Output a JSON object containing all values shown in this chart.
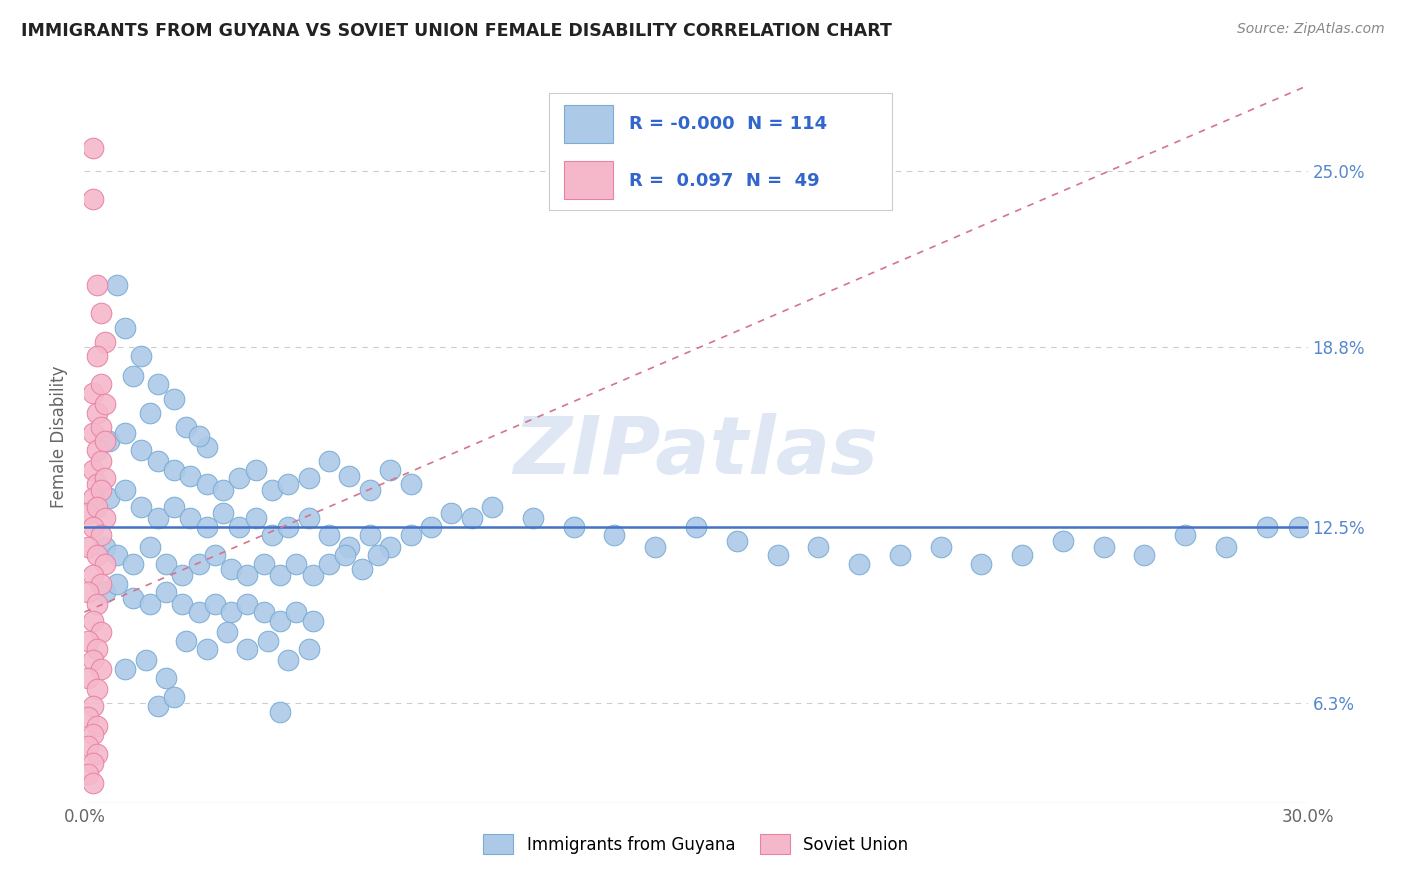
{
  "title": "IMMIGRANTS FROM GUYANA VS SOVIET UNION FEMALE DISABILITY CORRELATION CHART",
  "source": "Source: ZipAtlas.com",
  "ylabel": "Female Disability",
  "xlim": [
    0.0,
    0.3
  ],
  "ylim": [
    0.028,
    0.285
  ],
  "xtick_positions": [
    0.0,
    0.05,
    0.1,
    0.15,
    0.2,
    0.25,
    0.3
  ],
  "xticklabels": [
    "0.0%",
    "",
    "",
    "",
    "",
    "",
    "30.0%"
  ],
  "ytick_positions": [
    0.063,
    0.125,
    0.188,
    0.25
  ],
  "ytick_labels": [
    "6.3%",
    "12.5%",
    "18.8%",
    "25.0%"
  ],
  "legend_blue_r": "-0.000",
  "legend_blue_n": "114",
  "legend_pink_r": "0.097",
  "legend_pink_n": "49",
  "legend_label_blue": "Immigrants from Guyana",
  "legend_label_pink": "Soviet Union",
  "watermark": "ZIPatlas",
  "blue_color": "#adc9e8",
  "blue_edge_color": "#7aadd4",
  "pink_color": "#f5b8cb",
  "pink_edge_color": "#e882a4",
  "blue_line_color": "#4472c4",
  "pink_line_color": "#d4748e",
  "blue_scatter": [
    [
      0.008,
      0.21
    ],
    [
      0.014,
      0.185
    ],
    [
      0.018,
      0.175
    ],
    [
      0.01,
      0.195
    ],
    [
      0.022,
      0.17
    ],
    [
      0.016,
      0.165
    ],
    [
      0.025,
      0.16
    ],
    [
      0.03,
      0.153
    ],
    [
      0.028,
      0.157
    ],
    [
      0.012,
      0.178
    ],
    [
      0.006,
      0.155
    ],
    [
      0.01,
      0.158
    ],
    [
      0.014,
      0.152
    ],
    [
      0.018,
      0.148
    ],
    [
      0.022,
      0.145
    ],
    [
      0.026,
      0.143
    ],
    [
      0.03,
      0.14
    ],
    [
      0.034,
      0.138
    ],
    [
      0.038,
      0.142
    ],
    [
      0.042,
      0.145
    ],
    [
      0.046,
      0.138
    ],
    [
      0.05,
      0.14
    ],
    [
      0.055,
      0.142
    ],
    [
      0.06,
      0.148
    ],
    [
      0.065,
      0.143
    ],
    [
      0.07,
      0.138
    ],
    [
      0.075,
      0.145
    ],
    [
      0.08,
      0.14
    ],
    [
      0.006,
      0.135
    ],
    [
      0.01,
      0.138
    ],
    [
      0.014,
      0.132
    ],
    [
      0.018,
      0.128
    ],
    [
      0.022,
      0.132
    ],
    [
      0.026,
      0.128
    ],
    [
      0.03,
      0.125
    ],
    [
      0.034,
      0.13
    ],
    [
      0.038,
      0.125
    ],
    [
      0.042,
      0.128
    ],
    [
      0.046,
      0.122
    ],
    [
      0.05,
      0.125
    ],
    [
      0.055,
      0.128
    ],
    [
      0.06,
      0.122
    ],
    [
      0.065,
      0.118
    ],
    [
      0.07,
      0.122
    ],
    [
      0.075,
      0.118
    ],
    [
      0.08,
      0.122
    ],
    [
      0.085,
      0.125
    ],
    [
      0.09,
      0.13
    ],
    [
      0.095,
      0.128
    ],
    [
      0.1,
      0.132
    ],
    [
      0.11,
      0.128
    ],
    [
      0.12,
      0.125
    ],
    [
      0.13,
      0.122
    ],
    [
      0.14,
      0.118
    ],
    [
      0.15,
      0.125
    ],
    [
      0.16,
      0.12
    ],
    [
      0.17,
      0.115
    ],
    [
      0.18,
      0.118
    ],
    [
      0.19,
      0.112
    ],
    [
      0.2,
      0.115
    ],
    [
      0.21,
      0.118
    ],
    [
      0.22,
      0.112
    ],
    [
      0.23,
      0.115
    ],
    [
      0.24,
      0.12
    ],
    [
      0.25,
      0.118
    ],
    [
      0.26,
      0.115
    ],
    [
      0.27,
      0.122
    ],
    [
      0.28,
      0.118
    ],
    [
      0.29,
      0.125
    ],
    [
      0.298,
      0.125
    ],
    [
      0.005,
      0.118
    ],
    [
      0.008,
      0.115
    ],
    [
      0.012,
      0.112
    ],
    [
      0.016,
      0.118
    ],
    [
      0.02,
      0.112
    ],
    [
      0.024,
      0.108
    ],
    [
      0.028,
      0.112
    ],
    [
      0.032,
      0.115
    ],
    [
      0.036,
      0.11
    ],
    [
      0.04,
      0.108
    ],
    [
      0.044,
      0.112
    ],
    [
      0.048,
      0.108
    ],
    [
      0.052,
      0.112
    ],
    [
      0.056,
      0.108
    ],
    [
      0.06,
      0.112
    ],
    [
      0.064,
      0.115
    ],
    [
      0.068,
      0.11
    ],
    [
      0.072,
      0.115
    ],
    [
      0.005,
      0.102
    ],
    [
      0.008,
      0.105
    ],
    [
      0.012,
      0.1
    ],
    [
      0.016,
      0.098
    ],
    [
      0.02,
      0.102
    ],
    [
      0.024,
      0.098
    ],
    [
      0.028,
      0.095
    ],
    [
      0.032,
      0.098
    ],
    [
      0.036,
      0.095
    ],
    [
      0.04,
      0.098
    ],
    [
      0.044,
      0.095
    ],
    [
      0.048,
      0.092
    ],
    [
      0.052,
      0.095
    ],
    [
      0.056,
      0.092
    ],
    [
      0.025,
      0.085
    ],
    [
      0.03,
      0.082
    ],
    [
      0.035,
      0.088
    ],
    [
      0.04,
      0.082
    ],
    [
      0.045,
      0.085
    ],
    [
      0.05,
      0.078
    ],
    [
      0.055,
      0.082
    ],
    [
      0.01,
      0.075
    ],
    [
      0.015,
      0.078
    ],
    [
      0.02,
      0.072
    ],
    [
      0.018,
      0.062
    ],
    [
      0.022,
      0.065
    ],
    [
      0.048,
      0.06
    ]
  ],
  "pink_scatter": [
    [
      0.002,
      0.258
    ],
    [
      0.002,
      0.24
    ],
    [
      0.003,
      0.21
    ],
    [
      0.004,
      0.2
    ],
    [
      0.005,
      0.19
    ],
    [
      0.003,
      0.185
    ],
    [
      0.002,
      0.172
    ],
    [
      0.004,
      0.175
    ],
    [
      0.003,
      0.165
    ],
    [
      0.005,
      0.168
    ],
    [
      0.002,
      0.158
    ],
    [
      0.004,
      0.16
    ],
    [
      0.003,
      0.152
    ],
    [
      0.005,
      0.155
    ],
    [
      0.002,
      0.145
    ],
    [
      0.004,
      0.148
    ],
    [
      0.003,
      0.14
    ],
    [
      0.005,
      0.142
    ],
    [
      0.002,
      0.135
    ],
    [
      0.004,
      0.138
    ],
    [
      0.001,
      0.13
    ],
    [
      0.003,
      0.132
    ],
    [
      0.005,
      0.128
    ],
    [
      0.002,
      0.125
    ],
    [
      0.004,
      0.122
    ],
    [
      0.001,
      0.118
    ],
    [
      0.003,
      0.115
    ],
    [
      0.005,
      0.112
    ],
    [
      0.002,
      0.108
    ],
    [
      0.004,
      0.105
    ],
    [
      0.001,
      0.102
    ],
    [
      0.003,
      0.098
    ],
    [
      0.002,
      0.092
    ],
    [
      0.004,
      0.088
    ],
    [
      0.001,
      0.085
    ],
    [
      0.003,
      0.082
    ],
    [
      0.002,
      0.078
    ],
    [
      0.004,
      0.075
    ],
    [
      0.001,
      0.072
    ],
    [
      0.003,
      0.068
    ],
    [
      0.002,
      0.062
    ],
    [
      0.001,
      0.058
    ],
    [
      0.003,
      0.055
    ],
    [
      0.002,
      0.052
    ],
    [
      0.001,
      0.048
    ],
    [
      0.003,
      0.045
    ],
    [
      0.002,
      0.042
    ],
    [
      0.001,
      0.038
    ],
    [
      0.002,
      0.035
    ]
  ],
  "blue_trend_x": [
    0.0,
    0.3
  ],
  "blue_trend_y": [
    0.125,
    0.125
  ],
  "pink_trend_x": [
    0.0,
    0.3
  ],
  "pink_trend_y": [
    0.095,
    0.28
  ],
  "grid_color": "#cccccc",
  "background_color": "#ffffff"
}
